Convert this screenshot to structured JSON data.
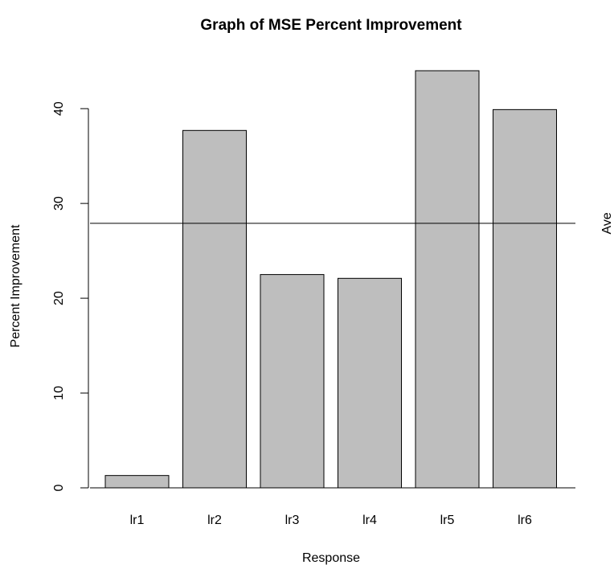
{
  "chart_data": {
    "type": "bar",
    "title": "Graph of MSE Percent Improvement",
    "xlabel": "Response",
    "ylabel": "Percent Improvement",
    "categories": [
      "lr1",
      "lr2",
      "lr3",
      "lr4",
      "lr5",
      "lr6"
    ],
    "values": [
      1.3,
      37.7,
      22.5,
      22.1,
      44.0,
      39.9
    ],
    "ylim": [
      0,
      44
    ],
    "yticks": [
      0,
      10,
      20,
      30,
      40
    ],
    "grid": false,
    "bar_color": "#bebebe",
    "reference_line": {
      "label": "Ave",
      "value": 27.9
    }
  }
}
